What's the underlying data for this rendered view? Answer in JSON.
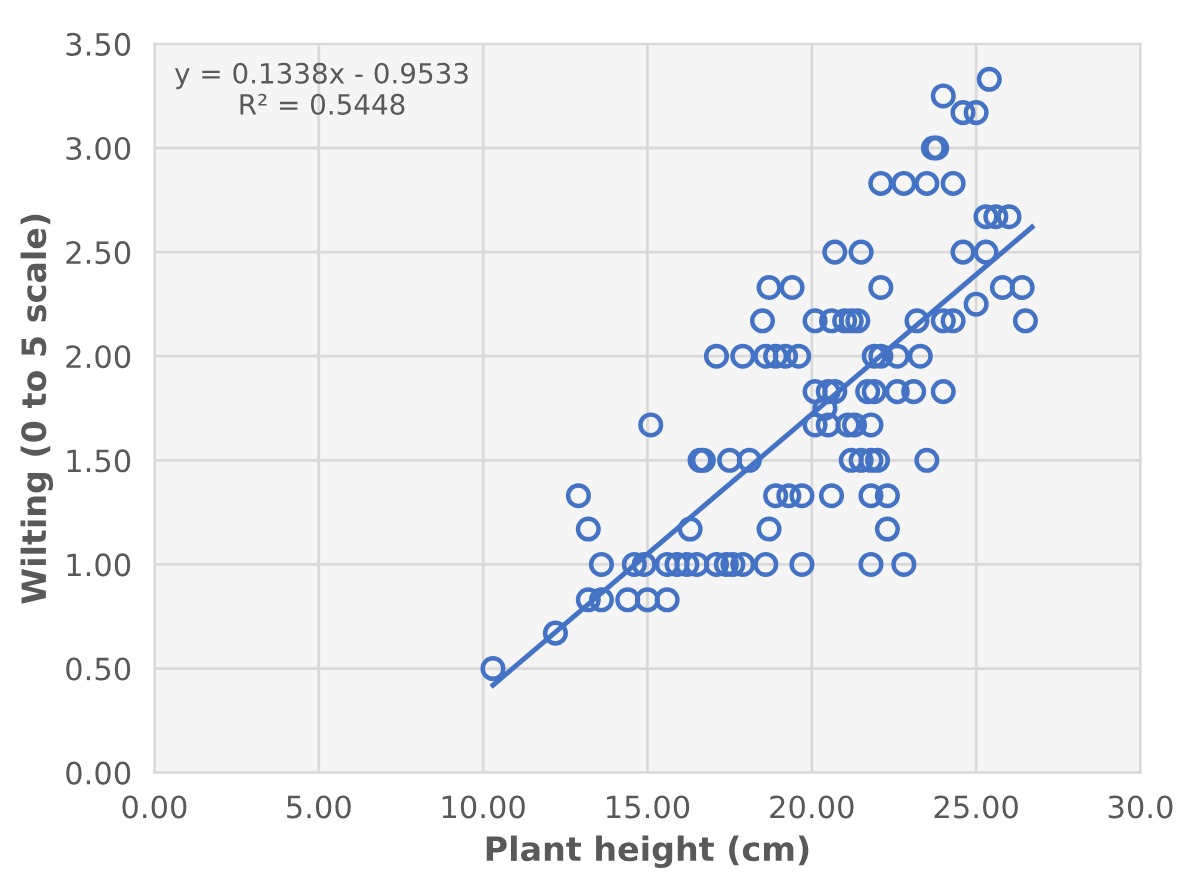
{
  "chart_data": {
    "type": "scatter",
    "xlabel": "Plant height (cm)",
    "ylabel": "Wilting (0 to 5 scale)",
    "xlim": [
      0,
      30
    ],
    "xticks": [
      {
        "value": 0,
        "label": "0.00"
      },
      {
        "value": 5,
        "label": "5.00"
      },
      {
        "value": 10,
        "label": "10.00"
      },
      {
        "value": 15,
        "label": "15.00"
      },
      {
        "value": 20,
        "label": "20.00"
      },
      {
        "value": 25,
        "label": "25.00"
      },
      {
        "value": 30,
        "label": "30.0"
      }
    ],
    "ylim": [
      0,
      3.5
    ],
    "yticks": [
      {
        "value": 0,
        "label": "0.00"
      },
      {
        "value": 0.5,
        "label": "0.50"
      },
      {
        "value": 1,
        "label": "1.00"
      },
      {
        "value": 1.5,
        "label": "1.50"
      },
      {
        "value": 2,
        "label": "2.00"
      },
      {
        "value": 2.5,
        "label": "2.50"
      },
      {
        "value": 3,
        "label": "3.00"
      },
      {
        "value": 3.5,
        "label": "3.50"
      }
    ],
    "grid": true,
    "legend": false,
    "annotations": [
      "y = 0.1338x - 0.9533",
      "R² = 0.5448"
    ],
    "series": [
      {
        "marker": "circle",
        "color": "#4472c4",
        "x": [
          10.3,
          12.2,
          13.2,
          13.6,
          14.4,
          15.0,
          15.6,
          13.6,
          14.6,
          14.9,
          15.6,
          15.9,
          16.2,
          16.5,
          17.1,
          17.4,
          17.6,
          17.9,
          18.6,
          19.7,
          21.8,
          22.8,
          13.2,
          16.3,
          18.7,
          22.3,
          12.9,
          18.9,
          19.3,
          19.7,
          20.6,
          21.8,
          22.3,
          16.6,
          16.7,
          17.5,
          18.1,
          21.2,
          21.5,
          21.8,
          22.0,
          23.5,
          15.1,
          20.1,
          20.5,
          21.1,
          21.3,
          21.8,
          20.4,
          20.1,
          20.5,
          20.7,
          21.7,
          21.9,
          22.6,
          23.1,
          24.0,
          17.1,
          17.9,
          18.6,
          18.9,
          19.2,
          19.6,
          21.9,
          22.1,
          22.6,
          23.3,
          18.5,
          20.1,
          20.6,
          21.0,
          21.2,
          21.4,
          23.2,
          24.0,
          24.3,
          26.5,
          25.0,
          18.7,
          19.4,
          22.1,
          25.8,
          26.4,
          20.7,
          21.5,
          24.6,
          25.3,
          25.3,
          25.6,
          26.0,
          22.1,
          22.8,
          23.5,
          24.3,
          23.7,
          23.8,
          24.6,
          25.0,
          24.0,
          25.4
        ],
        "values": [
          0.5,
          0.67,
          0.83,
          0.83,
          0.83,
          0.83,
          0.83,
          1.0,
          1.0,
          1.0,
          1.0,
          1.0,
          1.0,
          1.0,
          1.0,
          1.0,
          1.0,
          1.0,
          1.0,
          1.0,
          1.0,
          1.0,
          1.17,
          1.17,
          1.17,
          1.17,
          1.33,
          1.33,
          1.33,
          1.33,
          1.33,
          1.33,
          1.33,
          1.5,
          1.5,
          1.5,
          1.5,
          1.5,
          1.5,
          1.5,
          1.5,
          1.5,
          1.67,
          1.67,
          1.67,
          1.67,
          1.67,
          1.67,
          1.75,
          1.83,
          1.83,
          1.83,
          1.83,
          1.83,
          1.83,
          1.83,
          1.83,
          2.0,
          2.0,
          2.0,
          2.0,
          2.0,
          2.0,
          2.0,
          2.0,
          2.0,
          2.0,
          2.17,
          2.17,
          2.17,
          2.17,
          2.17,
          2.17,
          2.17,
          2.17,
          2.17,
          2.17,
          2.25,
          2.33,
          2.33,
          2.33,
          2.33,
          2.33,
          2.5,
          2.5,
          2.5,
          2.5,
          2.67,
          2.67,
          2.67,
          2.83,
          2.83,
          2.83,
          2.83,
          3.0,
          3.0,
          3.17,
          3.17,
          3.25,
          3.33
        ]
      },
      {
        "type": "line",
        "marker": "none",
        "color": "#4472c4",
        "x": [
          10.3,
          26.7
        ],
        "values": [
          0.42,
          2.62
        ]
      }
    ]
  }
}
